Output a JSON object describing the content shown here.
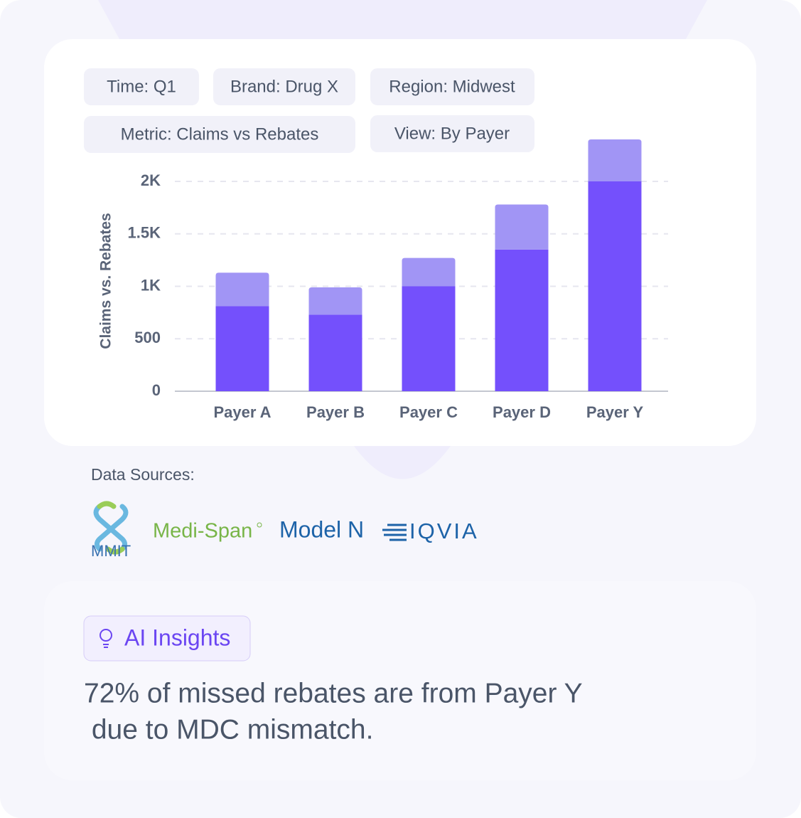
{
  "filters": [
    "Time: Q1",
    "Brand: Drug X",
    "Region: Midwest",
    "Metric: Claims vs Rebates",
    "View: By Payer"
  ],
  "chart_data": {
    "type": "stacked_bar",
    "y_label": "Claims vs. Rebates",
    "categories": [
      "Payer A",
      "Payer B",
      "Payer C",
      "Payer D",
      "Payer Y"
    ],
    "series": [
      {
        "color": "#7450fc",
        "values": [
          810,
          730,
          1000,
          1350,
          2000
        ]
      },
      {
        "color": "#a195f5",
        "values": [
          320,
          260,
          270,
          430,
          400
        ]
      }
    ],
    "ylim": [
      0,
      2400
    ],
    "yticks": [
      0,
      500,
      {
        "value": 1000,
        "label": "1K"
      },
      {
        "value": 1500,
        "label": "1.5K"
      },
      {
        "value": 2000,
        "label": "2K"
      }
    ],
    "grid": true
  },
  "sources": {
    "label": "Data Sources:",
    "logos": [
      "MMIT",
      "Medi-Span",
      "Model N",
      "IQVIA"
    ]
  },
  "insights": {
    "badge": "AI Insights",
    "lines": [
      "72% of missed rebates are from Payer Y",
      " due to MDC mismatch."
    ]
  }
}
